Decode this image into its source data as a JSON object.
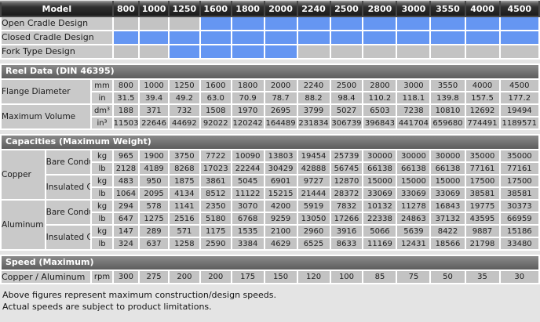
{
  "columns": [
    "800",
    "1000",
    "1250",
    "1600",
    "1800",
    "2000",
    "2240",
    "2500",
    "2800",
    "3000",
    "3550",
    "4000",
    "4500"
  ],
  "model": {
    "header_label": "Model",
    "design_rows": [
      {
        "label": "Open Cradle Design",
        "available": [
          false,
          false,
          false,
          true,
          true,
          true,
          true,
          true,
          true,
          true,
          true,
          true,
          true
        ]
      },
      {
        "label": "Closed Cradle Design",
        "available": [
          true,
          true,
          true,
          true,
          true,
          true,
          true,
          true,
          true,
          true,
          true,
          true,
          true
        ]
      },
      {
        "label": "Fork Type Design",
        "available": [
          false,
          false,
          true,
          true,
          true,
          true,
          false,
          false,
          false,
          false,
          false,
          false,
          false
        ]
      }
    ]
  },
  "reel_data": {
    "title": "Reel Data (DIN 46395)",
    "rows": [
      {
        "group": "Flange Diameter",
        "group_rowspan": 2,
        "unit": "mm",
        "values": [
          "800",
          "1000",
          "1250",
          "1600",
          "1800",
          "2000",
          "2240",
          "2500",
          "2800",
          "3000",
          "3550",
          "4000",
          "4500"
        ]
      },
      {
        "unit": "in",
        "values": [
          "31.5",
          "39.4",
          "49.2",
          "63.0",
          "70.9",
          "78.7",
          "88.2",
          "98.4",
          "110.2",
          "118.1",
          "139.8",
          "157.5",
          "177.2"
        ]
      },
      {
        "group": "Maximum Volume",
        "group_rowspan": 2,
        "unit": "dm³",
        "values": [
          "188",
          "371",
          "732",
          "1508",
          "1970",
          "2695",
          "3799",
          "5027",
          "6503",
          "7238",
          "10810",
          "12692",
          "19494"
        ]
      },
      {
        "unit": "in³",
        "values": [
          "11503",
          "22646",
          "44692",
          "92022",
          "120242",
          "164489",
          "231834",
          "306739",
          "396843",
          "441704",
          "659680",
          "774491",
          "1189571"
        ]
      }
    ]
  },
  "capacities": {
    "title": "Capacities (Maximum Weight)",
    "rows": [
      {
        "material": "Copper",
        "material_rowspan": 4,
        "type": "Bare Conductor",
        "type_rowspan": 2,
        "unit": "kg",
        "values": [
          "965",
          "1900",
          "3750",
          "7722",
          "10090",
          "13803",
          "19454",
          "25739",
          "30000",
          "30000",
          "30000",
          "35000",
          "35000"
        ]
      },
      {
        "unit": "lb",
        "values": [
          "2128",
          "4189",
          "8268",
          "17023",
          "22244",
          "30429",
          "42888",
          "56745",
          "66138",
          "66138",
          "66138",
          "77161",
          "77161"
        ]
      },
      {
        "type": "Insulated Cable",
        "type_rowspan": 2,
        "unit": "kg",
        "values": [
          "483",
          "950",
          "1875",
          "3861",
          "5045",
          "6901",
          "9727",
          "12870",
          "15000",
          "15000",
          "15000",
          "17500",
          "17500"
        ]
      },
      {
        "unit": "lb",
        "values": [
          "1064",
          "2095",
          "4134",
          "8512",
          "11122",
          "15215",
          "21444",
          "28372",
          "33069",
          "33069",
          "33069",
          "38581",
          "38581"
        ]
      },
      {
        "material": "Aluminum",
        "material_rowspan": 4,
        "type": "Bare Conductor",
        "type_rowspan": 2,
        "unit": "kg",
        "values": [
          "294",
          "578",
          "1141",
          "2350",
          "3070",
          "4200",
          "5919",
          "7832",
          "10132",
          "11278",
          "16843",
          "19775",
          "30373"
        ]
      },
      {
        "unit": "lb",
        "values": [
          "647",
          "1275",
          "2516",
          "5180",
          "6768",
          "9259",
          "13050",
          "17266",
          "22338",
          "24863",
          "37132",
          "43595",
          "66959"
        ]
      },
      {
        "type": "Insulated Cable",
        "type_rowspan": 2,
        "unit": "kg",
        "values": [
          "147",
          "289",
          "571",
          "1175",
          "1535",
          "2100",
          "2960",
          "3916",
          "5066",
          "5639",
          "8422",
          "9887",
          "15186"
        ]
      },
      {
        "unit": "lb",
        "values": [
          "324",
          "637",
          "1258",
          "2590",
          "3384",
          "4629",
          "6525",
          "8633",
          "11169",
          "12431",
          "18566",
          "21798",
          "33480"
        ]
      }
    ]
  },
  "speed": {
    "title": "Speed (Maximum)",
    "label": "Copper / Aluminum",
    "unit": "rpm",
    "values": [
      "300",
      "275",
      "200",
      "200",
      "175",
      "150",
      "120",
      "100",
      "85",
      "75",
      "50",
      "35",
      "30"
    ]
  },
  "footer": {
    "line1": "Above figures represent maximum construction/design speeds.",
    "line2": "Actual speeds are subject to product limitations."
  },
  "colors": {
    "available_cell": "#6596f2",
    "unavailable_cell": "#c3c3c3",
    "header_bg": "#1b1b1b",
    "section_bar_bg": "#5d5d5d",
    "label_cell_bg": "#c9c9c9",
    "page_bg": "#e4e4e4"
  }
}
